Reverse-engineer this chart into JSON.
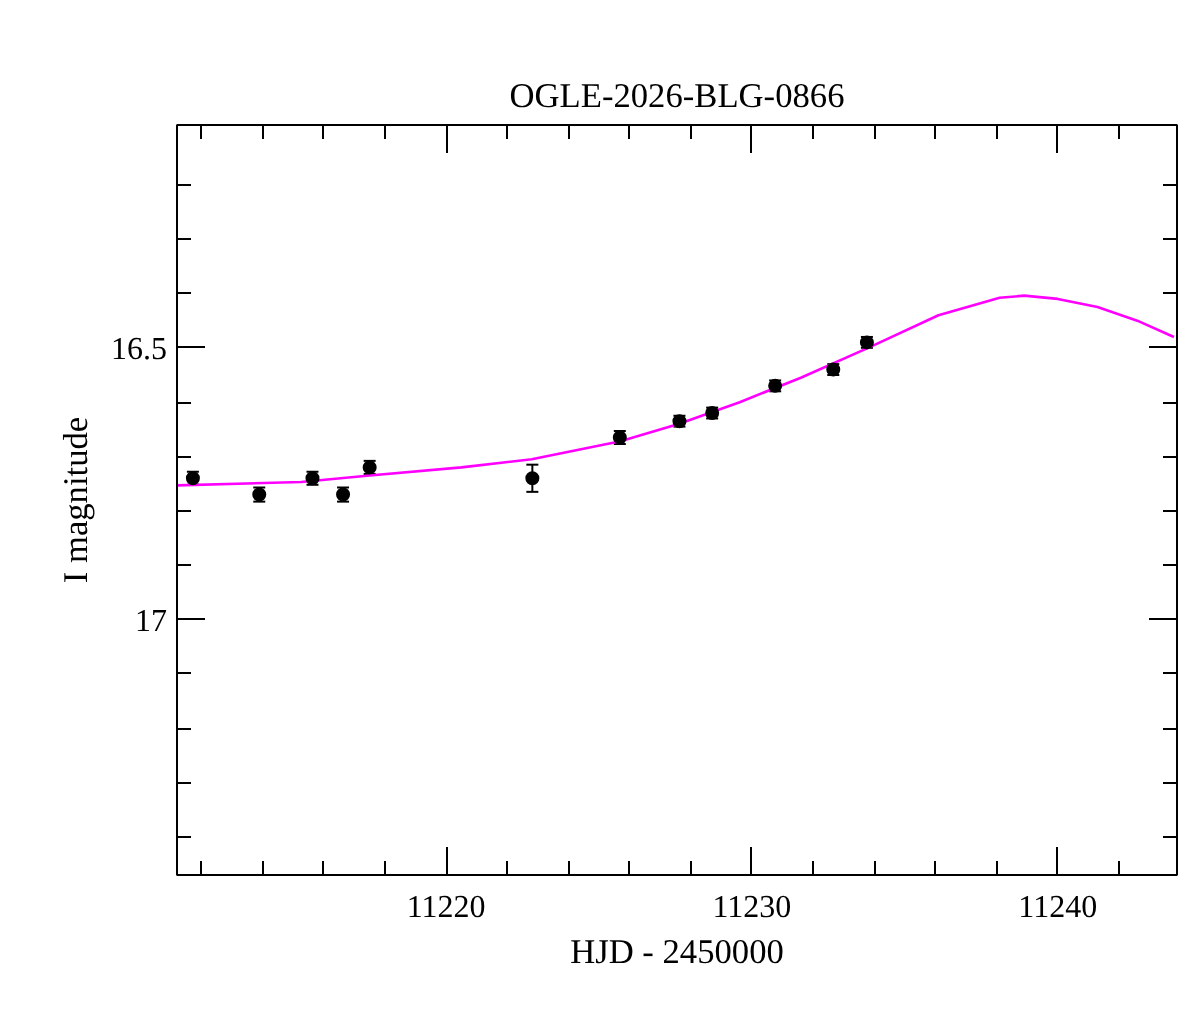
{
  "chart_data": {
    "type": "scatter",
    "title": "OGLE-2026-BLG-0866",
    "xlabel": "HJD - 2450000",
    "ylabel": "I magnitude",
    "xlim": [
      11211.2,
      11243.9
    ],
    "ylim": [
      17.47,
      16.09
    ],
    "xticks": [
      {
        "value": 11212,
        "label": null
      },
      {
        "value": 11214,
        "label": null
      },
      {
        "value": 11216,
        "label": null
      },
      {
        "value": 11218,
        "label": null
      },
      11220,
      {
        "value": 11222,
        "label": null
      },
      {
        "value": 11224,
        "label": null
      },
      {
        "value": 11226,
        "label": null
      },
      {
        "value": 11228,
        "label": null
      },
      11230,
      {
        "value": 11232,
        "label": null
      },
      {
        "value": 11234,
        "label": null
      },
      {
        "value": 11236,
        "label": null
      },
      {
        "value": 11238,
        "label": null
      },
      11240,
      {
        "value": 11242,
        "label": null
      }
    ],
    "yticks": [
      {
        "value": 16.2,
        "label": null
      },
      {
        "value": 16.3,
        "label": null
      },
      {
        "value": 16.4,
        "label": null
      },
      16.5,
      {
        "value": 16.6,
        "label": null
      },
      {
        "value": 16.7,
        "label": null
      },
      {
        "value": 16.8,
        "label": null
      },
      {
        "value": 16.9,
        "label": null
      },
      17,
      {
        "value": 17.1,
        "label": null
      },
      {
        "value": 17.2,
        "label": null
      },
      {
        "value": 17.3,
        "label": null
      },
      {
        "value": 17.4,
        "label": null
      }
    ],
    "grid": false,
    "marker": "circle",
    "series": [
      {
        "color": "#000000",
        "x": [
          11211.72,
          11213.89,
          11215.63,
          11216.63,
          11217.5,
          11222.82,
          11225.68,
          11227.63,
          11228.7,
          11230.76,
          11232.66,
          11233.76
        ],
        "values": [
          16.74,
          16.77,
          16.74,
          16.77,
          16.72,
          16.74,
          16.665,
          16.635,
          16.62,
          16.57,
          16.54,
          16.49
        ],
        "errors": [
          0.012,
          0.013,
          0.012,
          0.013,
          0.012,
          0.025,
          0.012,
          0.01,
          0.01,
          0.01,
          0.01,
          0.01
        ]
      },
      {
        "type": "line",
        "color": "#ff00ff",
        "marker": "none",
        "line_style": "solid",
        "x": [
          11211.2,
          11215.26,
          11217.5,
          11220.5,
          11222.8,
          11225.7,
          11227.6,
          11229.6,
          11231.6,
          11233.8,
          11236.1,
          11238.1,
          11238.9,
          11240,
          11241.3,
          11242.6,
          11243.8
        ],
        "values": [
          16.753,
          16.747,
          16.735,
          16.72,
          16.705,
          16.672,
          16.64,
          16.6,
          16.555,
          16.5,
          16.44,
          16.408,
          16.404,
          16.41,
          16.425,
          16.45,
          16.48
        ]
      }
    ]
  }
}
